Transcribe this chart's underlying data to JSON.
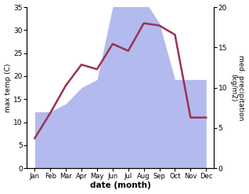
{
  "months": [
    "Jan",
    "Feb",
    "Mar",
    "Apr",
    "May",
    "Jun",
    "Jul",
    "Aug",
    "Sep",
    "Oct",
    "Nov",
    "Dec"
  ],
  "month_x": [
    0,
    1,
    2,
    3,
    4,
    5,
    6,
    7,
    8,
    9,
    10,
    11
  ],
  "precipitation": [
    7,
    7,
    8,
    10,
    11,
    20,
    21,
    21,
    18,
    11,
    11,
    11
  ],
  "max_temp": [
    6.5,
    12.0,
    18.0,
    22.5,
    21.5,
    27.0,
    25.5,
    31.5,
    31.0,
    29.0,
    11.0,
    11.0
  ],
  "temp_ylim": [
    0,
    35
  ],
  "precip_ylim": [
    0,
    20
  ],
  "temp_yticks": [
    0,
    5,
    10,
    15,
    20,
    25,
    30,
    35
  ],
  "precip_yticks": [
    0,
    5,
    10,
    15,
    20
  ],
  "ylabel_left": "max temp (C)",
  "ylabel_right": "med. precipitation\n(kg/m2)",
  "xlabel": "date (month)",
  "area_color": "#b3baee",
  "line_color": "#993355",
  "line_width": 1.8,
  "bg_color": "#ffffff"
}
